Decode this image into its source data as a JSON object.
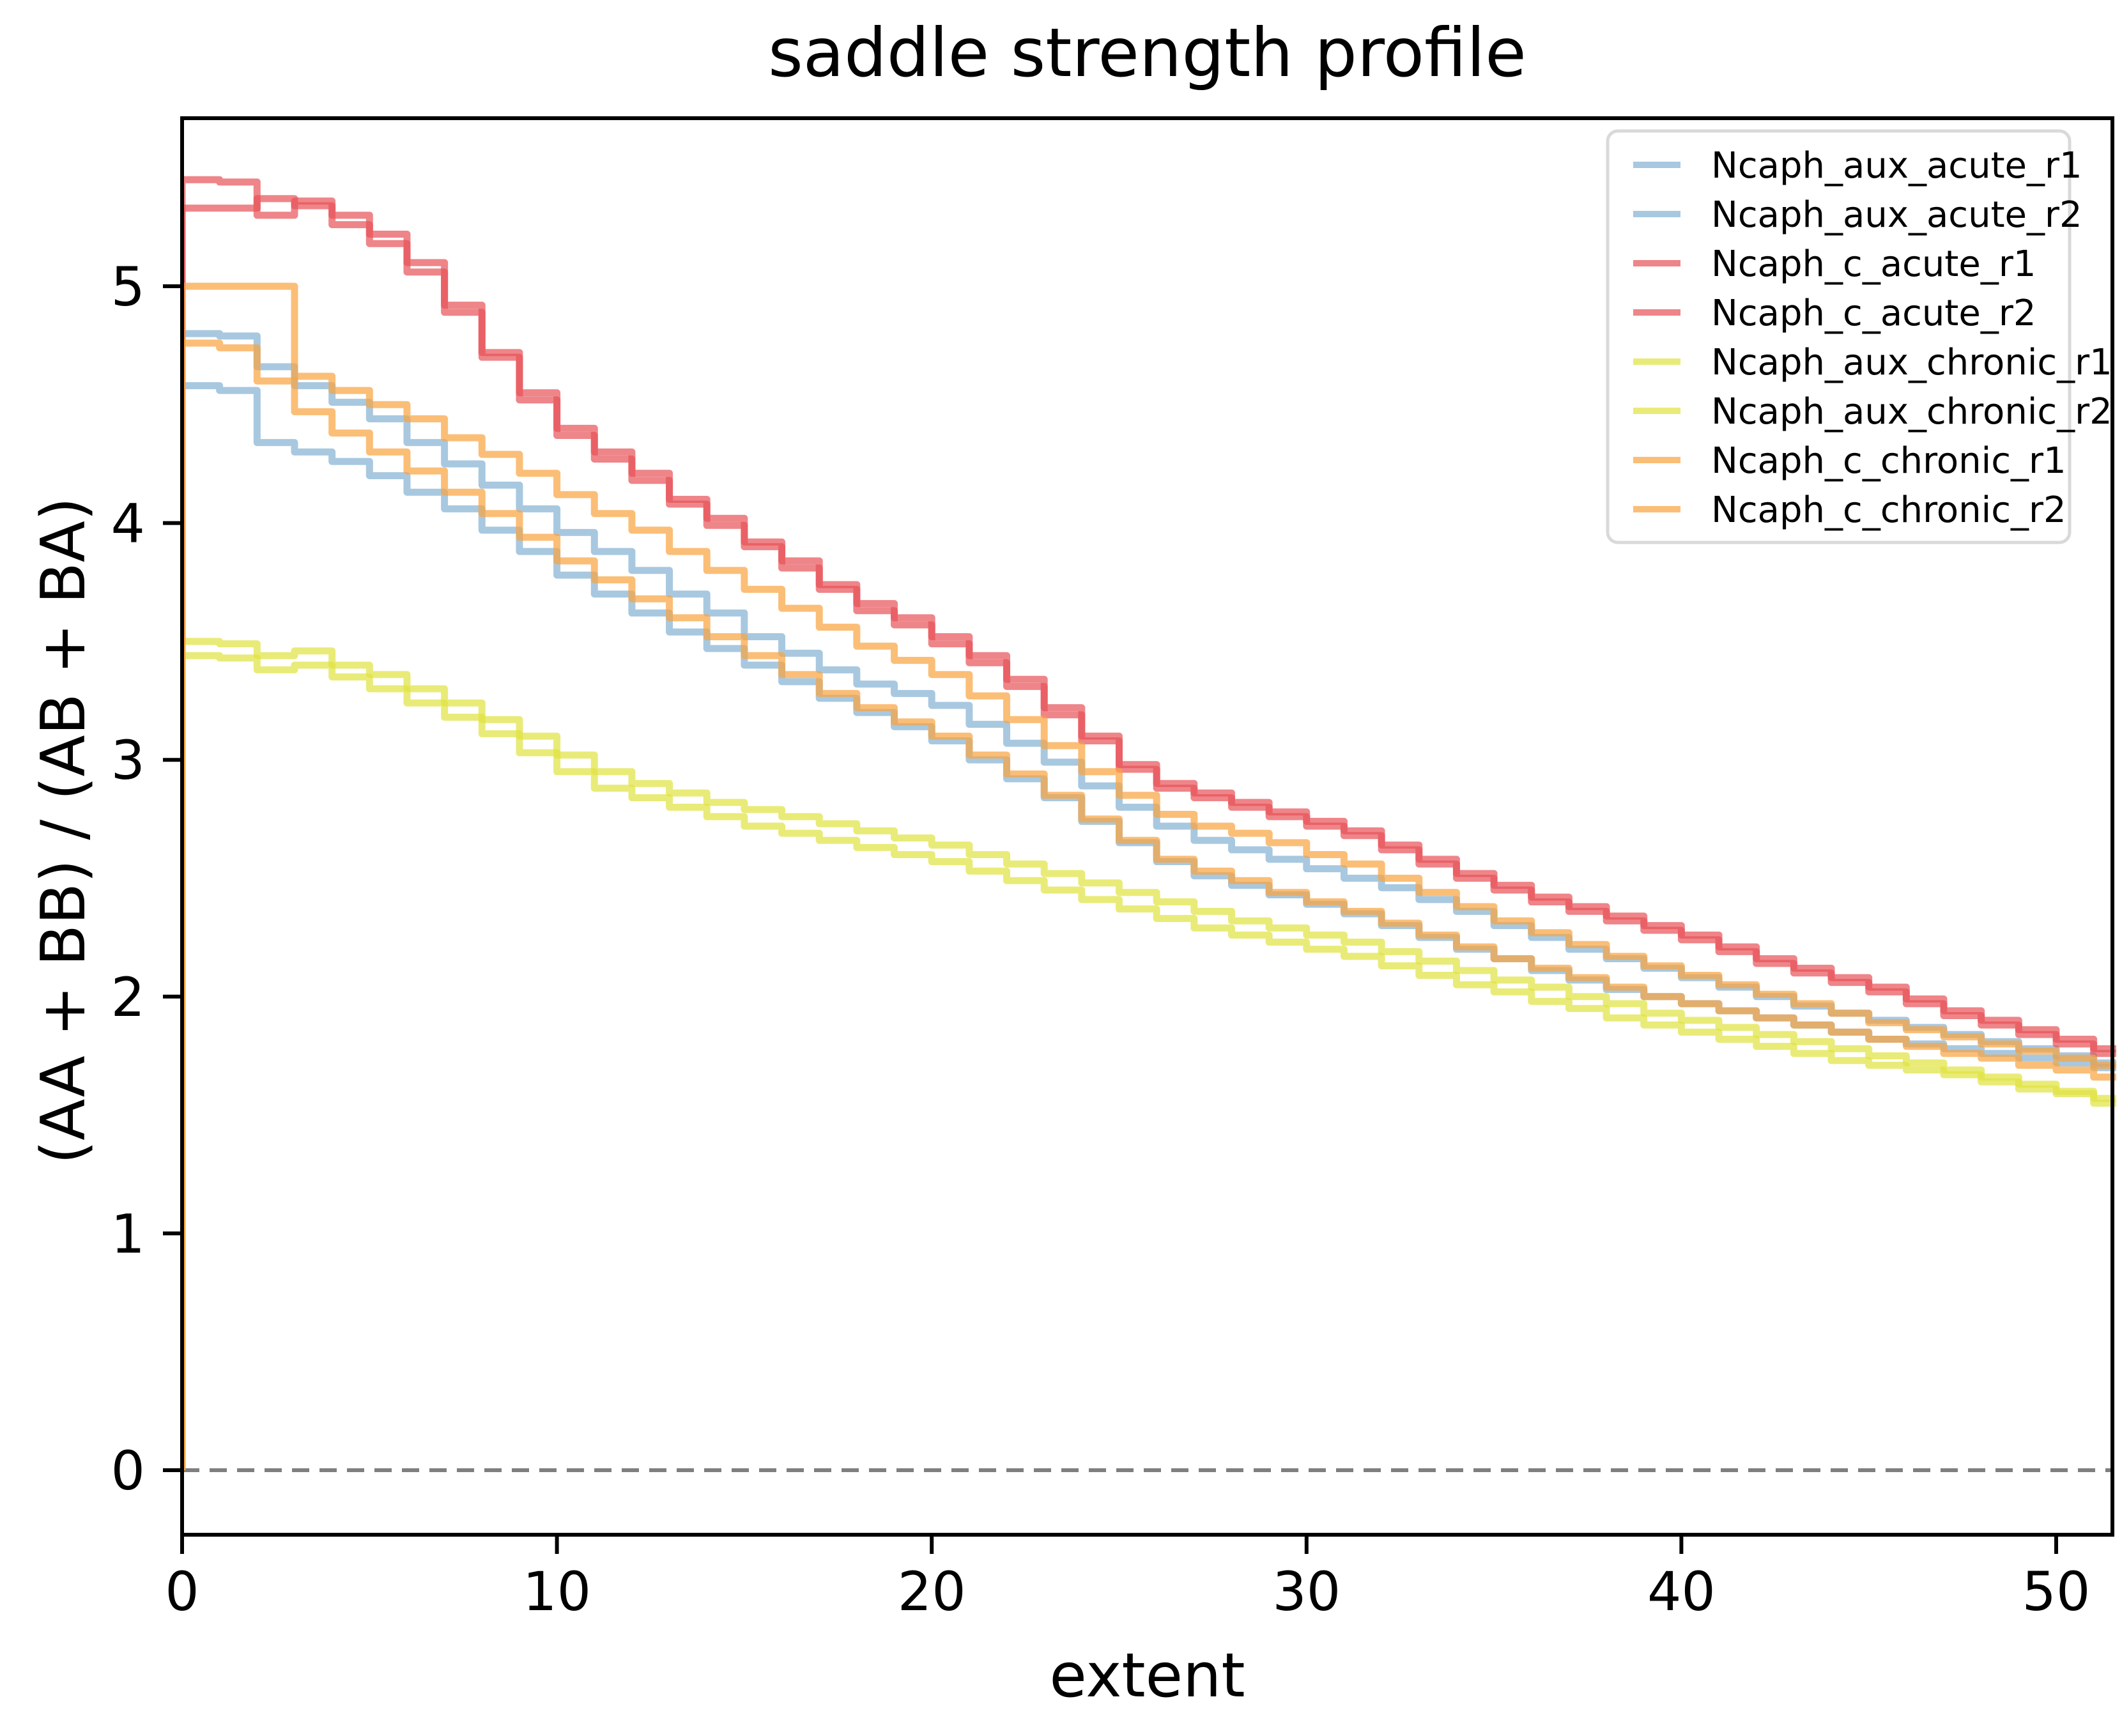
{
  "title": "saddle strength profile",
  "x_axis": {
    "label": "extent",
    "tick_labels": [
      "0",
      "10",
      "20",
      "30",
      "40",
      "50"
    ],
    "tick_values": [
      0,
      10,
      20,
      30,
      40,
      50
    ],
    "range": [
      0,
      51.5
    ]
  },
  "y_axis": {
    "label": "(AA + BB) / (AB + BA)",
    "tick_labels": [
      "0",
      "1",
      "2",
      "3",
      "4",
      "5"
    ],
    "tick_values": [
      0,
      1,
      2,
      3,
      4,
      5
    ],
    "range": [
      -0.27,
      5.71
    ]
  },
  "reference_line": {
    "y": 0,
    "style": "dashed",
    "color": "#7f7f7f"
  },
  "palette": {
    "aux_acute": "#83B0D3",
    "c_acute": "#E75157",
    "aux_chronic": "#E0E23E",
    "c_chronic": "#FAA23D",
    "line_alpha": 0.7,
    "legend_border": "#d9d9d9",
    "spine": "#000000"
  },
  "chart_data": {
    "type": "line",
    "draw_style": "steps-post",
    "x_start": 0,
    "x_step": 1,
    "grid": false,
    "legend_position": "upper right",
    "series": [
      {
        "name": "Ncaph_aux_acute_r1",
        "color": "#83B0D3",
        "values": [
          4.8,
          4.79,
          4.66,
          4.58,
          4.51,
          4.44,
          4.34,
          4.25,
          4.16,
          4.06,
          3.96,
          3.88,
          3.8,
          3.7,
          3.62,
          3.52,
          3.45,
          3.38,
          3.32,
          3.28,
          3.23,
          3.15,
          3.07,
          2.99,
          2.89,
          2.8,
          2.72,
          2.66,
          2.62,
          2.58,
          2.54,
          2.5,
          2.46,
          2.41,
          2.36,
          2.3,
          2.25,
          2.2,
          2.16,
          2.12,
          2.08,
          2.04,
          2.0,
          1.96,
          1.93,
          1.9,
          1.87,
          1.84,
          1.81,
          1.78,
          1.75,
          1.72
        ]
      },
      {
        "name": "Ncaph_aux_acute_r2",
        "color": "#83B0D3",
        "values": [
          4.58,
          4.56,
          4.34,
          4.3,
          4.26,
          4.2,
          4.13,
          4.06,
          3.97,
          3.88,
          3.78,
          3.7,
          3.62,
          3.54,
          3.47,
          3.4,
          3.33,
          3.26,
          3.2,
          3.14,
          3.08,
          3.0,
          2.92,
          2.84,
          2.74,
          2.65,
          2.57,
          2.51,
          2.47,
          2.43,
          2.39,
          2.35,
          2.3,
          2.25,
          2.2,
          2.16,
          2.11,
          2.07,
          2.03,
          2.0,
          1.97,
          1.94,
          1.91,
          1.88,
          1.85,
          1.82,
          1.8,
          1.78,
          1.76,
          1.74,
          1.72,
          1.7
        ]
      },
      {
        "name": "Ncaph_c_acute_r1",
        "color": "#E75157",
        "values": [
          5.45,
          5.44,
          5.3,
          5.36,
          5.3,
          5.22,
          5.1,
          4.92,
          4.72,
          4.55,
          4.4,
          4.3,
          4.21,
          4.1,
          4.02,
          3.92,
          3.84,
          3.74,
          3.66,
          3.6,
          3.52,
          3.44,
          3.34,
          3.22,
          3.1,
          2.98,
          2.9,
          2.86,
          2.82,
          2.78,
          2.74,
          2.7,
          2.64,
          2.58,
          2.52,
          2.47,
          2.42,
          2.38,
          2.34,
          2.3,
          2.26,
          2.21,
          2.16,
          2.12,
          2.08,
          2.04,
          1.99,
          1.94,
          1.9,
          1.86,
          1.82,
          1.78
        ]
      },
      {
        "name": "Ncaph_c_acute_r2",
        "color": "#E75157",
        "values": [
          5.33,
          5.33,
          5.37,
          5.34,
          5.26,
          5.18,
          5.06,
          4.89,
          4.7,
          4.52,
          4.37,
          4.27,
          4.18,
          4.08,
          3.99,
          3.9,
          3.81,
          3.72,
          3.63,
          3.57,
          3.49,
          3.41,
          3.31,
          3.19,
          3.08,
          2.96,
          2.88,
          2.84,
          2.8,
          2.76,
          2.72,
          2.68,
          2.62,
          2.56,
          2.5,
          2.45,
          2.4,
          2.36,
          2.32,
          2.28,
          2.24,
          2.19,
          2.14,
          2.1,
          2.06,
          2.02,
          1.97,
          1.92,
          1.88,
          1.84,
          1.8,
          1.76
        ]
      },
      {
        "name": "Ncaph_aux_chronic_r1",
        "color": "#E0E23E",
        "values": [
          3.5,
          3.49,
          3.44,
          3.46,
          3.4,
          3.36,
          3.3,
          3.24,
          3.17,
          3.1,
          3.02,
          2.95,
          2.9,
          2.86,
          2.82,
          2.79,
          2.76,
          2.73,
          2.7,
          2.67,
          2.64,
          2.6,
          2.56,
          2.52,
          2.48,
          2.44,
          2.4,
          2.36,
          2.32,
          2.29,
          2.26,
          2.23,
          2.19,
          2.15,
          2.11,
          2.07,
          2.04,
          2.0,
          1.97,
          1.93,
          1.9,
          1.87,
          1.84,
          1.81,
          1.78,
          1.75,
          1.72,
          1.69,
          1.66,
          1.63,
          1.6,
          1.57
        ]
      },
      {
        "name": "Ncaph_aux_chronic_r2",
        "color": "#E0E23E",
        "values": [
          3.44,
          3.43,
          3.38,
          3.4,
          3.35,
          3.3,
          3.24,
          3.18,
          3.11,
          3.03,
          2.95,
          2.88,
          2.84,
          2.8,
          2.76,
          2.72,
          2.69,
          2.66,
          2.63,
          2.6,
          2.57,
          2.53,
          2.49,
          2.45,
          2.41,
          2.37,
          2.33,
          2.29,
          2.26,
          2.23,
          2.2,
          2.17,
          2.13,
          2.09,
          2.05,
          2.02,
          1.98,
          1.95,
          1.91,
          1.88,
          1.85,
          1.82,
          1.79,
          1.76,
          1.73,
          1.71,
          1.69,
          1.67,
          1.64,
          1.61,
          1.59,
          1.55
        ]
      },
      {
        "name": "Ncaph_c_chronic_r1",
        "color": "#FAA23D",
        "values": [
          5.0,
          5.0,
          5.0,
          4.62,
          4.56,
          4.5,
          4.44,
          4.36,
          4.29,
          4.21,
          4.12,
          4.04,
          3.97,
          3.88,
          3.8,
          3.72,
          3.64,
          3.56,
          3.48,
          3.42,
          3.36,
          3.27,
          3.17,
          3.06,
          2.95,
          2.85,
          2.77,
          2.72,
          2.69,
          2.65,
          2.6,
          2.56,
          2.5,
          2.44,
          2.38,
          2.32,
          2.27,
          2.22,
          2.17,
          2.13,
          2.09,
          2.05,
          2.01,
          1.97,
          1.93,
          1.89,
          1.86,
          1.83,
          1.8,
          1.77,
          1.74,
          1.71
        ]
      },
      {
        "name": "Ncaph_c_chronic_r2",
        "color": "#FAA23D",
        "values": [
          4.76,
          4.74,
          4.6,
          4.47,
          4.38,
          4.3,
          4.22,
          4.13,
          4.04,
          3.94,
          3.84,
          3.76,
          3.68,
          3.6,
          3.52,
          3.44,
          3.36,
          3.28,
          3.22,
          3.16,
          3.1,
          3.02,
          2.94,
          2.85,
          2.75,
          2.66,
          2.58,
          2.53,
          2.49,
          2.44,
          2.4,
          2.36,
          2.31,
          2.26,
          2.21,
          2.16,
          2.12,
          2.08,
          2.04,
          2.0,
          1.97,
          1.94,
          1.91,
          1.88,
          1.85,
          1.82,
          1.79,
          1.76,
          1.74,
          1.71,
          1.69,
          1.66
        ]
      }
    ]
  }
}
